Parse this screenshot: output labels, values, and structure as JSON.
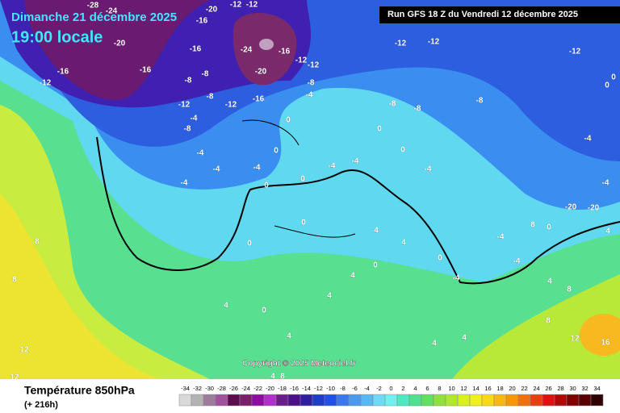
{
  "header": {
    "date": "Dimanche 21 décembre 2025",
    "time": "19:00 locale",
    "run": "Run GFS 18 Z du Vendredi 12 décembre 2025"
  },
  "copyright": "Copyright © 2025 Meteociel.fr",
  "map_labels": [
    -28,
    -24,
    -20,
    -12,
    -12,
    -16,
    -20,
    -16,
    -24,
    -16,
    -12,
    -12,
    -20,
    -12,
    -16,
    -16,
    -8,
    -8,
    -12,
    -8,
    -12,
    -16,
    -8,
    -4,
    -12,
    -12,
    -12,
    -8,
    -8,
    -8,
    -4,
    -8,
    -4,
    -4,
    -4,
    0,
    0,
    0,
    0,
    -4,
    0,
    0,
    -4,
    -4,
    -4,
    4,
    4,
    0,
    0,
    4,
    0,
    8,
    8,
    4,
    0,
    4,
    4,
    4,
    4,
    4,
    8,
    8,
    12,
    16,
    12,
    12,
    4,
    8,
    -4,
    -4,
    -4,
    0,
    0,
    8,
    -4,
    -4,
    0,
    0,
    4,
    -20,
    -20
  ],
  "legend": {
    "title": "Température 850hPa",
    "lead": "(+ 216h)",
    "ticks": [
      -34,
      -32,
      -30,
      -28,
      -26,
      -24,
      -22,
      -20,
      -18,
      -16,
      -14,
      -12,
      -10,
      -8,
      -6,
      -4,
      -2,
      0,
      2,
      4,
      6,
      8,
      10,
      12,
      14,
      16,
      18,
      20,
      22,
      24,
      26,
      28,
      30,
      32,
      34
    ],
    "colors": [
      "#d9d9d9",
      "#b3b3b3",
      "#9c7b9c",
      "#a0509c",
      "#5c0d4c",
      "#7a1f6a",
      "#8d0da0",
      "#b030c8",
      "#6a1e8c",
      "#4b0e8c",
      "#3020a0",
      "#1e3cc8",
      "#2050e8",
      "#3a78f0",
      "#4a9af0",
      "#58b8f5",
      "#70d8f8",
      "#70f0f0",
      "#50e8c0",
      "#50e090",
      "#60e060",
      "#90e040",
      "#b0e830",
      "#d8f020",
      "#f0f020",
      "#f8d818",
      "#f8b810",
      "#f89808",
      "#f07010",
      "#e84010",
      "#e01010",
      "#b00808",
      "#800000",
      "#580000",
      "#300000"
    ]
  }
}
